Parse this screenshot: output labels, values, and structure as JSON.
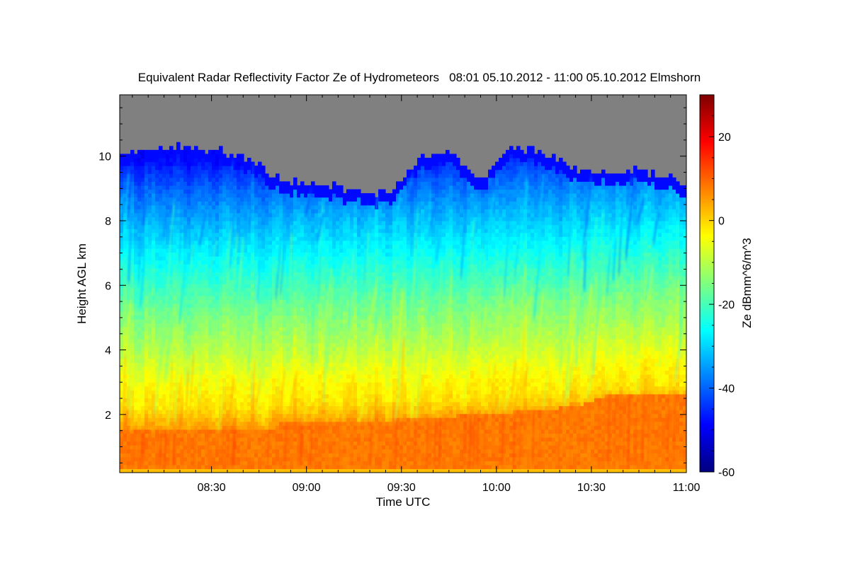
{
  "chart_data": {
    "type": "heatmap",
    "title": "Equivalent Radar Reflectivity Factor Ze of Hydrometeors   08:01 05.10.2012 - 11:00 05.10.2012 Elmshorn",
    "xlabel": "Time UTC",
    "ylabel": "Height AGL km",
    "colorbar_label": "Ze dBmm^6/m^3",
    "xlim": [
      "08:01",
      "11:00"
    ],
    "ylim": [
      0.2,
      11.9
    ],
    "zlim": [
      -60,
      30
    ],
    "x_ticks": [
      "08:30",
      "09:00",
      "09:30",
      "10:00",
      "10:30",
      "11:00"
    ],
    "y_ticks": [
      2,
      4,
      6,
      8,
      10
    ],
    "colorbar_ticks": [
      20,
      0,
      -20,
      -40,
      -60
    ],
    "colormap": [
      "#00007f",
      "#0000ff",
      "#007fff",
      "#00ffff",
      "#7fff7f",
      "#ffff00",
      "#ff7f00",
      "#ff0000",
      "#7f0000"
    ],
    "no_data_color": "#808080",
    "profiles": [
      {
        "height_km": 0.3,
        "ze_dbz": 8
      },
      {
        "height_km": 1.0,
        "ze_dbz": 9
      },
      {
        "height_km": 1.6,
        "ze_dbz": 5
      },
      {
        "height_km": 2.2,
        "ze_dbz": -1
      },
      {
        "height_km": 3.0,
        "ze_dbz": -4
      },
      {
        "height_km": 4.0,
        "ze_dbz": -10
      },
      {
        "height_km": 5.0,
        "ze_dbz": -15
      },
      {
        "height_km": 6.0,
        "ze_dbz": -21
      },
      {
        "height_km": 7.0,
        "ze_dbz": -27
      },
      {
        "height_km": 8.0,
        "ze_dbz": -33
      },
      {
        "height_km": 9.0,
        "ze_dbz": -40
      },
      {
        "height_km": 9.8,
        "ze_dbz": -47
      }
    ],
    "melting_layer_top_km": [
      {
        "time": "08:01",
        "height_km": 1.5
      },
      {
        "time": "08:50",
        "height_km": 1.5
      },
      {
        "time": "08:52",
        "height_km": 1.75
      },
      {
        "time": "09:30",
        "height_km": 1.85
      },
      {
        "time": "10:00",
        "height_km": 2.05
      },
      {
        "time": "10:25",
        "height_km": 2.25
      },
      {
        "time": "10:35",
        "height_km": 2.6
      },
      {
        "time": "11:00",
        "height_km": 2.7
      }
    ],
    "cloud_top_km": [
      {
        "time": "08:01",
        "height_km": 10.0
      },
      {
        "time": "08:10",
        "height_km": 10.2
      },
      {
        "time": "08:20",
        "height_km": 10.3
      },
      {
        "time": "08:32",
        "height_km": 10.2
      },
      {
        "time": "08:40",
        "height_km": 10.0
      },
      {
        "time": "08:50",
        "height_km": 9.4
      },
      {
        "time": "09:00",
        "height_km": 9.1
      },
      {
        "time": "09:10",
        "height_km": 9.05
      },
      {
        "time": "09:20",
        "height_km": 8.85
      },
      {
        "time": "09:27",
        "height_km": 8.9
      },
      {
        "time": "09:35",
        "height_km": 9.9
      },
      {
        "time": "09:45",
        "height_km": 10.2
      },
      {
        "time": "09:55",
        "height_km": 9.2
      },
      {
        "time": "10:05",
        "height_km": 10.3
      },
      {
        "time": "10:15",
        "height_km": 10.1
      },
      {
        "time": "10:25",
        "height_km": 9.6
      },
      {
        "time": "10:35",
        "height_km": 9.5
      },
      {
        "time": "10:45",
        "height_km": 9.55
      },
      {
        "time": "10:55",
        "height_km": 9.4
      },
      {
        "time": "11:00",
        "height_km": 9.0
      }
    ]
  }
}
